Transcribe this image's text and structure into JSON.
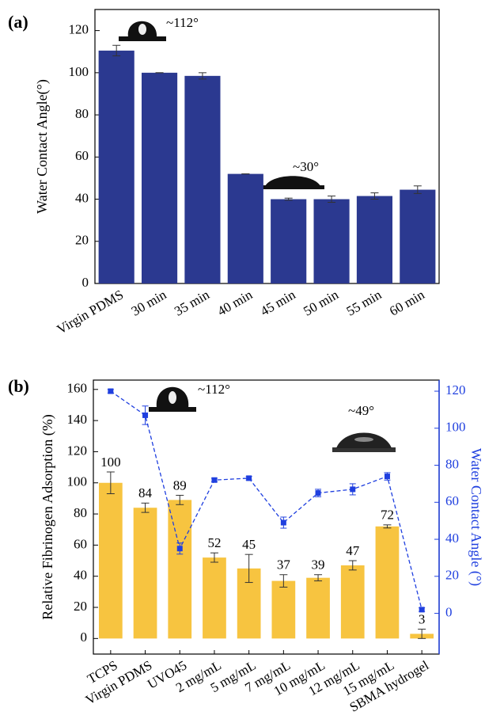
{
  "chart_data": [
    {
      "type": "bar",
      "panel_label": "(a)",
      "y_label": "Water Contact Angle(°)",
      "categories": [
        "Virgin PDMS",
        "30 min",
        "35 min",
        "40 min",
        "45 min",
        "50 min",
        "55 min",
        "60 min"
      ],
      "values": [
        110.5,
        100,
        98.5,
        52,
        40,
        40,
        41.5,
        44.5
      ],
      "errors": [
        2.5,
        0,
        1.5,
        0,
        0.5,
        1.5,
        1.5,
        1.8
      ],
      "color": "#2b3990",
      "ylim": [
        0,
        130
      ],
      "yticks": [
        0,
        20,
        40,
        60,
        80,
        100,
        120
      ],
      "annotations": [
        "~112°",
        "~30°"
      ]
    },
    {
      "type": "bar",
      "panel_label": "(b)",
      "y_label": "Relative Fibrinogen Adsorption (%)",
      "y2_label": "Water Contact Angle (°)",
      "categories": [
        "TCPS",
        "Virgin PDMS",
        "UVO45",
        "2 mg/mL",
        "5 mg/mL",
        "7 mg/mL",
        "10 mg/mL",
        "12 mg/mL",
        "15 mg/mL",
        "SBMA hydrogel"
      ],
      "series": [
        {
          "color": "#f7c440",
          "values": [
            100,
            84,
            89,
            52,
            45,
            37,
            39,
            47,
            72,
            3
          ],
          "errors": [
            7,
            3,
            3,
            3,
            9,
            4,
            2,
            3,
            1,
            3
          ]
        },
        {
          "type": "line",
          "axis": "y2",
          "color": "#1f3fdf",
          "values": [
            120,
            107,
            35,
            72,
            73,
            49,
            65,
            67,
            74,
            2
          ],
          "errors": [
            1,
            5,
            3,
            1,
            1,
            3,
            2,
            3,
            2,
            1
          ]
        }
      ],
      "ylim": [
        -10,
        166
      ],
      "yticks": [
        0,
        20,
        40,
        60,
        80,
        100,
        120,
        140,
        160
      ],
      "y2lim": [
        -22,
        126
      ],
      "y2ticks": [
        0,
        20,
        40,
        60,
        80,
        100,
        120
      ],
      "annotations": [
        "~112°",
        "~49°"
      ]
    }
  ]
}
